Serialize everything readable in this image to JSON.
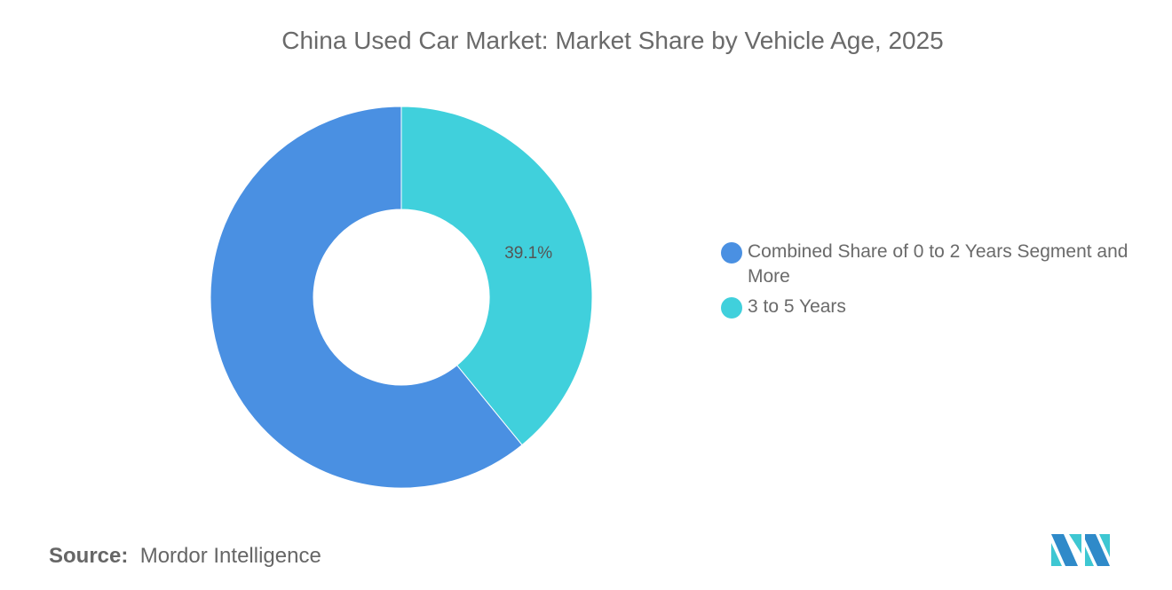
{
  "chart_data": {
    "type": "pie",
    "donut": true,
    "title": "China Used Car Market: Market Share by Vehicle Age, 2025",
    "categories": [
      "Combined Share of 0 to 2 Years Segment and More",
      "3 to 5 Years"
    ],
    "values": [
      60.9,
      39.1
    ],
    "data_labels": [
      "",
      "39.1%"
    ],
    "colors": [
      "#4a90e2",
      "#40d0dc"
    ],
    "legend_position": "right"
  },
  "source": {
    "label": "Source:",
    "value": "Mordor Intelligence"
  },
  "logo": {
    "text": "Mordor Intelligence",
    "colors": [
      "#2f8ac9",
      "#3ec7d2"
    ]
  }
}
